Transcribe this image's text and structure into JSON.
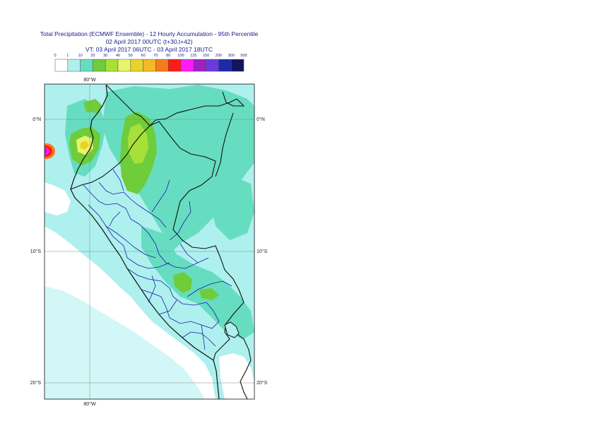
{
  "title": {
    "line1": "Total Precipitation (ECMWF Ensemble) - 12 Hourly Accumulation - 95th Percentile",
    "line2": "02 April 2017 00UTC (t+30,t+42)",
    "line3": "VT: 03 April 2017 06UTC - 03 April 2017 18UTC"
  },
  "legend": {
    "ticks": [
      "0",
      "1",
      "10",
      "20",
      "30",
      "40",
      "50",
      "60",
      "70",
      "80",
      "100",
      "125",
      "150",
      "200",
      "300",
      "500"
    ],
    "colors": [
      "#ffffff",
      "#aef0ee",
      "#66ddc0",
      "#6fcc3a",
      "#a8e03a",
      "#e8f56a",
      "#e6d428",
      "#f5b92a",
      "#f47c1a",
      "#ff1a1a",
      "#ff1aff",
      "#a020c0",
      "#6a3ae0",
      "#1a2aa8",
      "#121660"
    ]
  },
  "axes": {
    "lon_labels": [
      "80°W",
      "80°W"
    ],
    "lat_labels_left": [
      "0°N",
      "10°S",
      "20°S"
    ],
    "lat_labels_right": [
      "0°N",
      "10°S",
      "20°S"
    ]
  },
  "colors": {
    "background": "#ffffff",
    "country_border": "#111111",
    "region_border": "#1a1aaa"
  }
}
